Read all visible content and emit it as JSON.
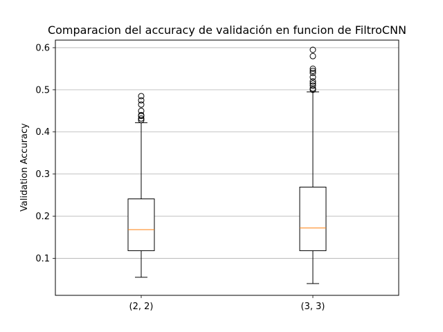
{
  "chart_data": {
    "type": "boxplot",
    "title": "Comparacion del accuracy de validación en funcion de FiltroCNN",
    "xlabel": "",
    "ylabel": "Validation Accuracy",
    "ylim": [
      0.012,
      0.618
    ],
    "yticks": [
      0.1,
      0.2,
      0.3,
      0.4,
      0.5,
      0.6
    ],
    "ytick_labels": [
      "0.1",
      "0.2",
      "0.3",
      "0.4",
      "0.5",
      "0.6"
    ],
    "grid": "y",
    "categories": [
      "(2, 2)",
      "(3, 3)"
    ],
    "boxes": [
      {
        "whisker_low": 0.055,
        "q1": 0.118,
        "median": 0.168,
        "q3": 0.241,
        "whisker_high": 0.422,
        "fliers": [
          0.428,
          0.432,
          0.438,
          0.44,
          0.45,
          0.465,
          0.475,
          0.485
        ]
      },
      {
        "whisker_low": 0.04,
        "q1": 0.118,
        "median": 0.172,
        "q3": 0.269,
        "whisker_high": 0.495,
        "fliers": [
          0.5,
          0.503,
          0.51,
          0.515,
          0.52,
          0.53,
          0.54,
          0.545,
          0.55,
          0.58,
          0.595
        ]
      }
    ],
    "colors": {
      "box_line": "#000000",
      "median": "#ff7f0e",
      "grid": "#b0b0b0"
    }
  }
}
